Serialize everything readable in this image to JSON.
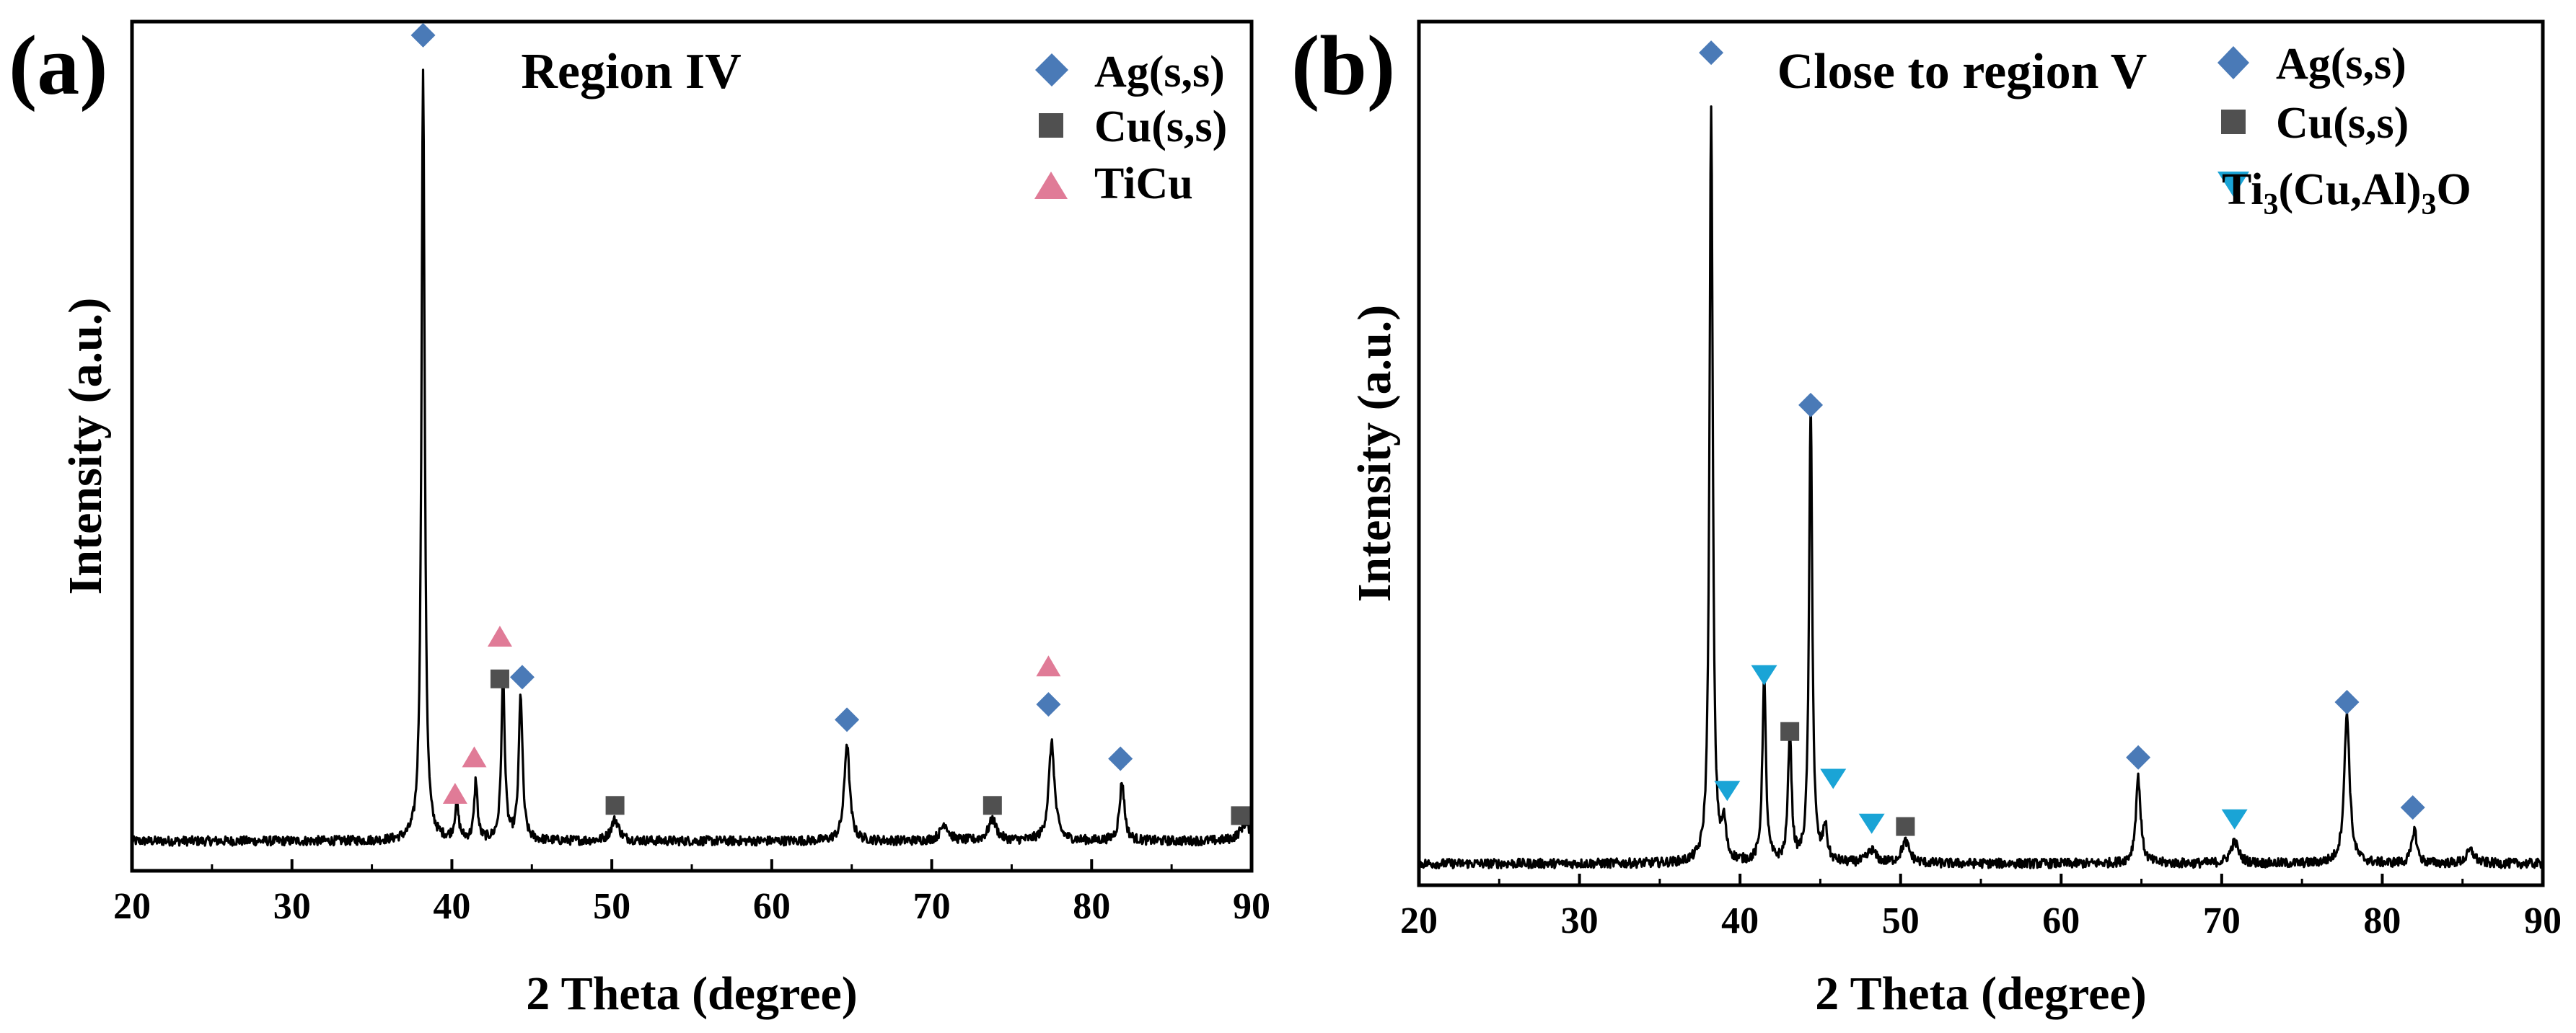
{
  "figure": {
    "panels": [
      {
        "panel_label": "(a)",
        "region_title": "Region IV"
      },
      {
        "panel_label": "(b)",
        "region_title": "Close to region V"
      }
    ]
  },
  "chart_data": [
    {
      "type": "line",
      "title": "Region IV",
      "panel_label": "(a)",
      "xlabel": "2 Theta (degree)",
      "ylabel": "Intensity (a.u.)",
      "xlim": [
        20,
        90
      ],
      "ylim": [
        0,
        100
      ],
      "xticks": [
        20,
        30,
        40,
        50,
        60,
        70,
        80,
        90
      ],
      "yticks_shown": false,
      "grid": false,
      "legend": {
        "placement": "top-right",
        "entries": [
          {
            "label": "Ag(s,s)",
            "marker": "diamond",
            "color": "#4a7ab7"
          },
          {
            "label": "Cu(s,s)",
            "marker": "square",
            "color": "#505050"
          },
          {
            "label": "TiCu",
            "marker": "triangle-up",
            "color": "#e07b97"
          }
        ]
      },
      "series": [
        {
          "baseline": 3.5,
          "peaks": [
            [
              38.2,
              91,
              0.12
            ],
            [
              40.3,
              4,
              0.15
            ],
            [
              41.5,
              7,
              0.12
            ],
            [
              43.2,
              19,
              0.13
            ],
            [
              44.3,
              17,
              0.14
            ],
            [
              50.2,
              2.5,
              0.3
            ],
            [
              64.7,
              11.5,
              0.2
            ],
            [
              70.8,
              2,
              0.3
            ],
            [
              73.8,
              2.5,
              0.3
            ],
            [
              77.5,
              11.5,
              0.22
            ],
            [
              81.9,
              7,
              0.18
            ],
            [
              89.6,
              2,
              0.4
            ]
          ]
        }
      ],
      "markers": [
        {
          "phase": "Ag(s,s)",
          "x": 38.2,
          "y": 98.4
        },
        {
          "phase": "Ag(s,s)",
          "x": 44.4,
          "y": 22.8
        },
        {
          "phase": "Ag(s,s)",
          "x": 64.7,
          "y": 17.8
        },
        {
          "phase": "Ag(s,s)",
          "x": 77.3,
          "y": 19.6
        },
        {
          "phase": "Ag(s,s)",
          "x": 81.8,
          "y": 13.2
        },
        {
          "phase": "Cu(s,s)",
          "x": 43.0,
          "y": 22.6
        },
        {
          "phase": "Cu(s,s)",
          "x": 50.2,
          "y": 7.7
        },
        {
          "phase": "Cu(s,s)",
          "x": 73.8,
          "y": 7.7
        },
        {
          "phase": "Cu(s,s)",
          "x": 89.3,
          "y": 6.5
        },
        {
          "phase": "TiCu",
          "x": 40.2,
          "y": 9.0
        },
        {
          "phase": "TiCu",
          "x": 41.4,
          "y": 13.3
        },
        {
          "phase": "TiCu",
          "x": 43.0,
          "y": 27.5
        },
        {
          "phase": "TiCu",
          "x": 77.3,
          "y": 24.0
        }
      ]
    },
    {
      "type": "line",
      "title": "Close to region V",
      "panel_label": "(b)",
      "xlabel": "2 Theta (degree)",
      "ylabel": "Intensity (a.u.)",
      "xlim": [
        20,
        90
      ],
      "ylim": [
        0,
        100
      ],
      "xticks": [
        20,
        30,
        40,
        50,
        60,
        70,
        80,
        90
      ],
      "yticks_shown": false,
      "grid": false,
      "legend": {
        "placement": "top-right",
        "entries": [
          {
            "label": "Ag(s,s)",
            "marker": "diamond",
            "color": "#4a7ab7"
          },
          {
            "label": "Cu(s,s)",
            "marker": "square",
            "color": "#505050"
          },
          {
            "label": "Ti3(Cu,Al)3O",
            "label_base": "Ti",
            "label_sub1": "3",
            "label_mid": "(Cu,Al)",
            "label_sub2": "3",
            "label_end": "O",
            "marker": "triangle-down",
            "color": "#1aa4d6"
          }
        ]
      },
      "series": [
        {
          "baseline": 2.5,
          "peaks": [
            [
              38.2,
              88,
              0.12
            ],
            [
              39.0,
              4,
              0.15
            ],
            [
              41.5,
              21.5,
              0.13
            ],
            [
              43.1,
              15,
              0.13
            ],
            [
              44.4,
              53,
              0.12
            ],
            [
              45.3,
              4,
              0.15
            ],
            [
              48.2,
              1.5,
              0.3
            ],
            [
              50.3,
              2.5,
              0.3
            ],
            [
              64.8,
              10,
              0.18
            ],
            [
              70.8,
              2.5,
              0.3
            ],
            [
              77.8,
              17.5,
              0.2
            ],
            [
              82.0,
              4,
              0.18
            ],
            [
              85.5,
              1.5,
              0.3
            ]
          ]
        }
      ],
      "markers": [
        {
          "phase": "Ag(s,s)",
          "x": 38.2,
          "y": 96.4
        },
        {
          "phase": "Ag(s,s)",
          "x": 44.4,
          "y": 55.6
        },
        {
          "phase": "Ag(s,s)",
          "x": 64.8,
          "y": 14.8
        },
        {
          "phase": "Ag(s,s)",
          "x": 77.8,
          "y": 21.2
        },
        {
          "phase": "Ag(s,s)",
          "x": 81.9,
          "y": 9.0
        },
        {
          "phase": "Cu(s,s)",
          "x": 43.1,
          "y": 17.8
        },
        {
          "phase": "Cu(s,s)",
          "x": 50.3,
          "y": 6.8
        },
        {
          "phase": "Ti3(Cu,Al)3O",
          "x": 39.2,
          "y": 11.0
        },
        {
          "phase": "Ti3(Cu,Al)3O",
          "x": 41.5,
          "y": 24.4
        },
        {
          "phase": "Ti3(Cu,Al)3O",
          "x": 45.8,
          "y": 12.4
        },
        {
          "phase": "Ti3(Cu,Al)3O",
          "x": 48.2,
          "y": 7.2
        },
        {
          "phase": "Ti3(Cu,Al)3O",
          "x": 70.8,
          "y": 7.7
        }
      ]
    }
  ]
}
